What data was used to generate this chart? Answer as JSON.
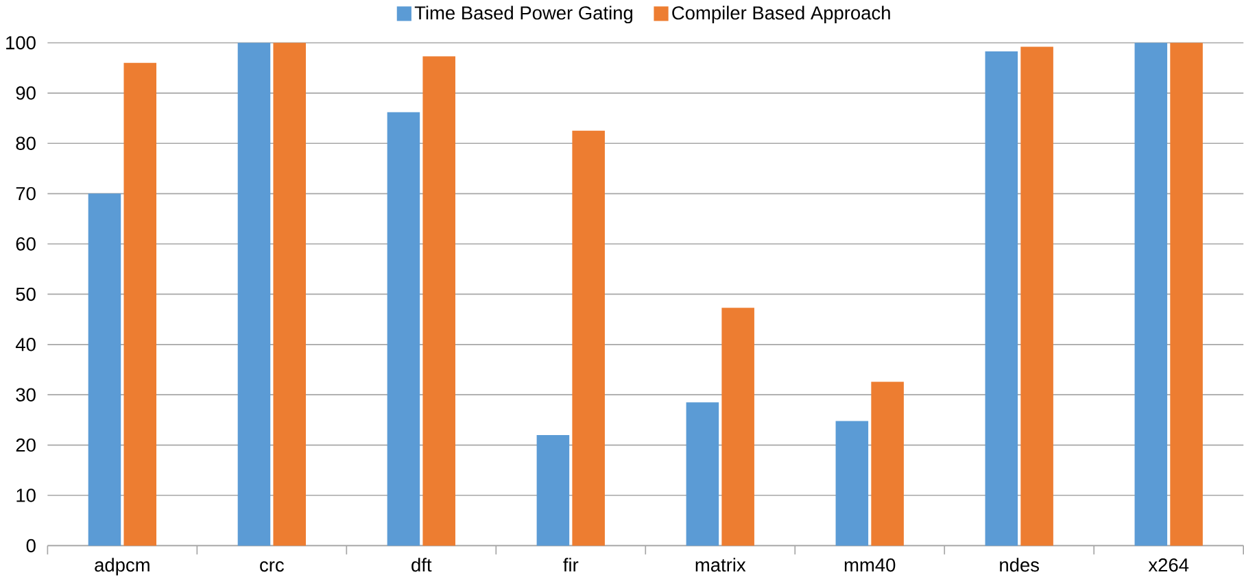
{
  "chart_data": {
    "type": "bar",
    "categories": [
      "adpcm",
      "crc",
      "dft",
      "fir",
      "matrix",
      "mm40",
      "ndes",
      "x264"
    ],
    "series": [
      {
        "name": "Time Based Power Gating",
        "color": "#5b9bd5",
        "values": [
          70,
          100,
          86.2,
          22,
          28.5,
          24.8,
          98.3,
          100
        ]
      },
      {
        "name": "Compiler Based Approach",
        "color": "#ed7d31",
        "values": [
          96,
          100,
          97.3,
          82.5,
          47.3,
          32.6,
          99.2,
          100
        ]
      }
    ],
    "ylim": [
      0,
      100
    ],
    "yticks": [
      0,
      10,
      20,
      30,
      40,
      50,
      60,
      70,
      80,
      90,
      100
    ],
    "grid": "y",
    "legend": "top"
  }
}
